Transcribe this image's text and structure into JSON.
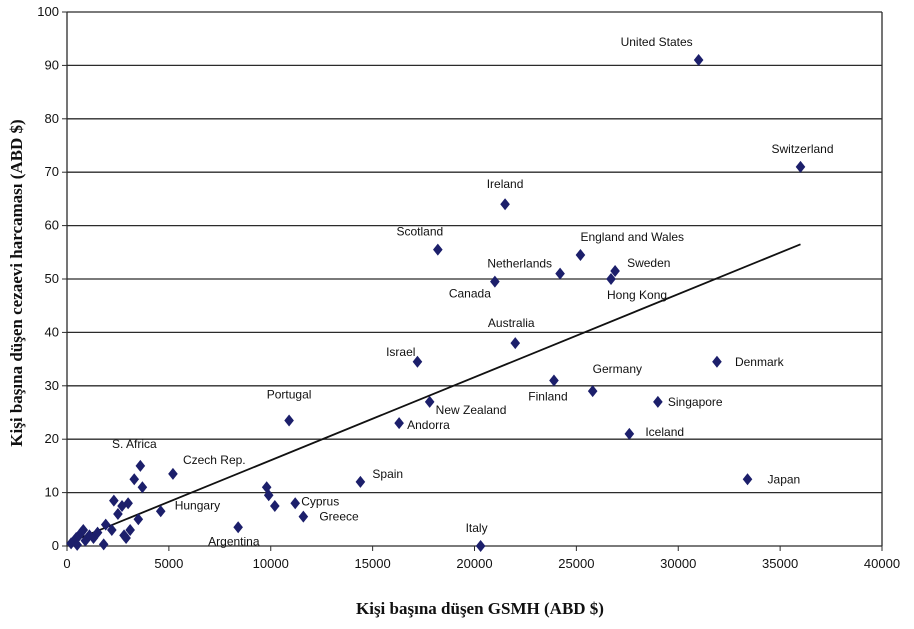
{
  "chart_data": {
    "type": "scatter",
    "xlabel": "Kişi başına düşen GSMH (ABD $)",
    "ylabel": "Kişi başına düşen cezaevi harcaması (ABD $)",
    "xlim": [
      0,
      40000
    ],
    "ylim": [
      0,
      100
    ],
    "xticks": [
      "0",
      "5000",
      "10000",
      "15000",
      "20000",
      "25000",
      "30000",
      "35000",
      "40000"
    ],
    "yticks": [
      "0",
      "10",
      "20",
      "30",
      "40",
      "50",
      "60",
      "70",
      "80",
      "90",
      "100"
    ],
    "grid": "horizontal",
    "trendline": {
      "x": [
        0,
        36000
      ],
      "y": [
        0.5,
        56.5
      ]
    },
    "labeled_points": [
      {
        "label": "United States",
        "x": 31000,
        "y": 91
      },
      {
        "label": "Switzerland",
        "x": 36000,
        "y": 71
      },
      {
        "label": "Ireland",
        "x": 21500,
        "y": 64
      },
      {
        "label": "Scotland",
        "x": 18200,
        "y": 55.5
      },
      {
        "label": "England and Wales",
        "x": 25200,
        "y": 54.5
      },
      {
        "label": "Netherlands",
        "x": 24200,
        "y": 51
      },
      {
        "label": "Sweden",
        "x": 26900,
        "y": 51.5
      },
      {
        "label": "Hong Kong",
        "x": 26700,
        "y": 50
      },
      {
        "label": "Canada",
        "x": 21000,
        "y": 49.5
      },
      {
        "label": "Australia",
        "x": 22000,
        "y": 38
      },
      {
        "label": "Israel",
        "x": 17200,
        "y": 34.5
      },
      {
        "label": "Denmark",
        "x": 31900,
        "y": 34.5
      },
      {
        "label": "Germany",
        "x": 25800,
        "y": 29
      },
      {
        "label": "Finland",
        "x": 23900,
        "y": 31
      },
      {
        "label": "Singapore",
        "x": 29000,
        "y": 27
      },
      {
        "label": "New Zealand",
        "x": 17800,
        "y": 27
      },
      {
        "label": "Portugal",
        "x": 10900,
        "y": 23.5
      },
      {
        "label": "Andorra",
        "x": 16300,
        "y": 23
      },
      {
        "label": "Iceland",
        "x": 27600,
        "y": 21
      },
      {
        "label": "S. Africa",
        "x": 3600,
        "y": 15
      },
      {
        "label": "Czech Rep.",
        "x": 5200,
        "y": 13.5
      },
      {
        "label": "Japan",
        "x": 33400,
        "y": 12.5
      },
      {
        "label": "Spain",
        "x": 14400,
        "y": 12
      },
      {
        "label": "Cyprus",
        "x": 11200,
        "y": 8
      },
      {
        "label": "Greece",
        "x": 11600,
        "y": 5.5
      },
      {
        "label": "Hungary",
        "x": 4600,
        "y": 6.5
      },
      {
        "label": "Argentina",
        "x": 8400,
        "y": 3.5
      },
      {
        "label": "Italy",
        "x": 20300,
        "y": 0
      }
    ],
    "unlabeled_points": [
      {
        "x": 200,
        "y": 0.5
      },
      {
        "x": 350,
        "y": 1
      },
      {
        "x": 450,
        "y": 1.5
      },
      {
        "x": 500,
        "y": 0.2
      },
      {
        "x": 600,
        "y": 2
      },
      {
        "x": 700,
        "y": 2.5
      },
      {
        "x": 800,
        "y": 3
      },
      {
        "x": 900,
        "y": 1
      },
      {
        "x": 1100,
        "y": 2
      },
      {
        "x": 1300,
        "y": 1.5
      },
      {
        "x": 1500,
        "y": 2.5
      },
      {
        "x": 1800,
        "y": 0.3
      },
      {
        "x": 1900,
        "y": 4
      },
      {
        "x": 2200,
        "y": 3
      },
      {
        "x": 2300,
        "y": 8.5
      },
      {
        "x": 2500,
        "y": 6
      },
      {
        "x": 2700,
        "y": 7.5
      },
      {
        "x": 2800,
        "y": 2
      },
      {
        "x": 2900,
        "y": 1.5
      },
      {
        "x": 3000,
        "y": 8
      },
      {
        "x": 3100,
        "y": 3
      },
      {
        "x": 3300,
        "y": 12.5
      },
      {
        "x": 3500,
        "y": 5
      },
      {
        "x": 3700,
        "y": 11
      },
      {
        "x": 9800,
        "y": 11
      },
      {
        "x": 9900,
        "y": 9.5
      },
      {
        "x": 10200,
        "y": 7.5
      }
    ]
  }
}
